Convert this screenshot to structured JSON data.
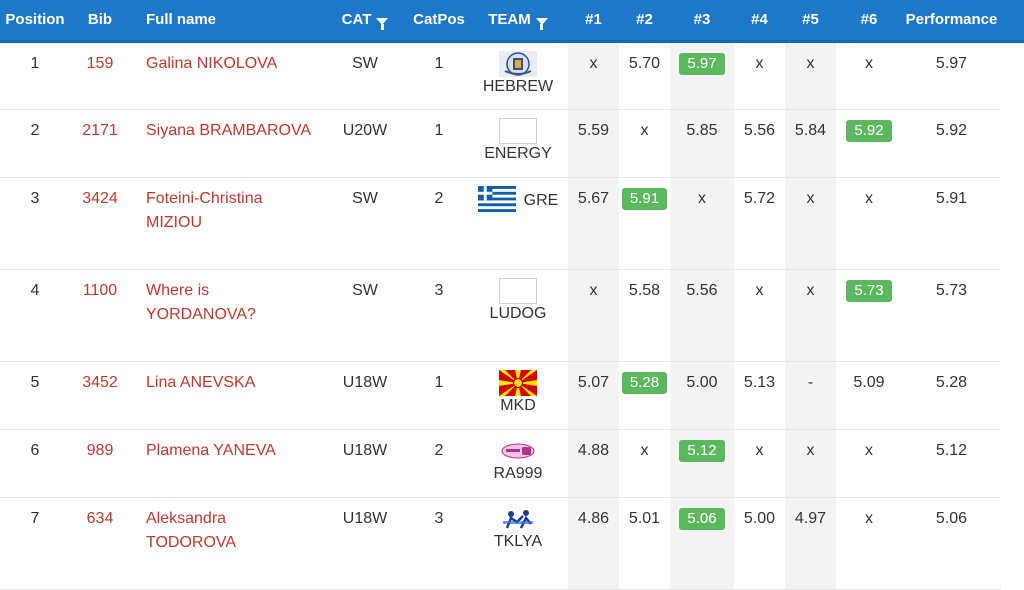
{
  "headers": {
    "position": "Position",
    "bib": "Bib",
    "full_name": "Full name",
    "cat": "CAT",
    "catpos": "CatPos",
    "team": "TEAM",
    "r1": "#1",
    "r2": "#2",
    "r3": "#3",
    "r4": "#4",
    "r5": "#5",
    "r6": "#6",
    "performance": "Performance"
  },
  "rows": [
    {
      "position": "1",
      "bib": "159",
      "name1": "Galina NIKOLOVA",
      "name2": "",
      "cat": "SW",
      "catpos": "1",
      "team": "HEBREW",
      "logo": "hebrew-logo-icon",
      "attempts": [
        "x",
        "5.70",
        "5.97",
        "x",
        "x",
        "x"
      ],
      "best_index": 2,
      "performance": "5.97"
    },
    {
      "position": "2",
      "bib": "2171",
      "name1": "Siyana BRAMBAROVA",
      "name2": "",
      "cat": "U20W",
      "catpos": "1",
      "team": "ENERGY",
      "logo": "blank-logo-icon",
      "attempts": [
        "5.59",
        "x",
        "5.85",
        "5.56",
        "5.84",
        "5.92"
      ],
      "best_index": 5,
      "performance": "5.92"
    },
    {
      "position": "3",
      "bib": "3424",
      "name1": "Foteini-Christina",
      "name2": "MIZIOU",
      "cat": "SW",
      "catpos": "2",
      "team": "GRE",
      "logo": "greece-flag-icon",
      "attempts": [
        "5.67",
        "5.91",
        "x",
        "5.72",
        "x",
        "x"
      ],
      "best_index": 1,
      "performance": "5.91"
    },
    {
      "position": "4",
      "bib": "1100",
      "name1": "Where is",
      "name2": "YORDANOVA?",
      "cat": "SW",
      "catpos": "3",
      "team": "LUDOG",
      "logo": "blank-logo-icon",
      "attempts": [
        "x",
        "5.58",
        "5.56",
        "x",
        "x",
        "5.73"
      ],
      "best_index": 5,
      "performance": "5.73"
    },
    {
      "position": "5",
      "bib": "3452",
      "name1": "Lina ANEVSKA",
      "name2": "",
      "cat": "U18W",
      "catpos": "1",
      "team": "MKD",
      "logo": "north-macedonia-flag-icon",
      "attempts": [
        "5.07",
        "5.28",
        "5.00",
        "5.13",
        "-",
        "5.09"
      ],
      "best_index": 1,
      "performance": "5.28"
    },
    {
      "position": "6",
      "bib": "989",
      "name1": "Plamena YANEVA",
      "name2": "",
      "cat": "U18W",
      "catpos": "2",
      "team": "RA999",
      "logo": "radio-999-logo-icon",
      "attempts": [
        "4.88",
        "x",
        "5.12",
        "x",
        "x",
        "x"
      ],
      "best_index": 2,
      "performance": "5.12"
    },
    {
      "position": "7",
      "bib": "634",
      "name1": "Aleksandra",
      "name2": "TODOROVA",
      "cat": "U18W",
      "catpos": "3",
      "team": "TKLYA",
      "logo": "kevadrov-logo-icon",
      "attempts": [
        "4.86",
        "5.01",
        "5.06",
        "5.00",
        "4.97",
        "x"
      ],
      "best_index": 2,
      "performance": "5.06"
    }
  ],
  "colors": {
    "header_bg": "#1f77c9",
    "link_red": "#c0392b",
    "best_green": "#5cb85c",
    "stripe": "#f3f3f3"
  }
}
